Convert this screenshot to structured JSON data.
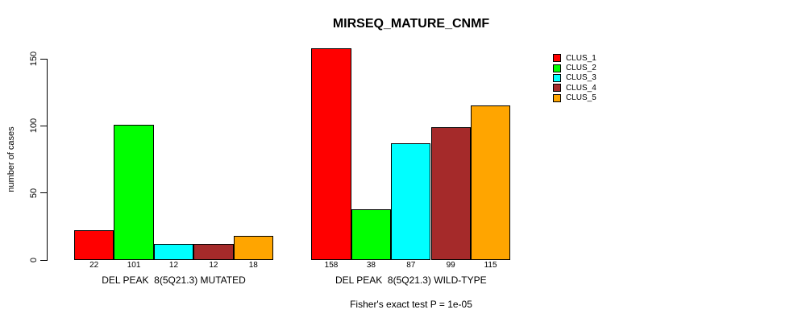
{
  "chart_data": {
    "type": "bar",
    "title": "MIRSEQ_MATURE_CNMF",
    "ylabel": "number of cases",
    "yticks": [
      0,
      50,
      100,
      150
    ],
    "ylim": [
      0,
      158
    ],
    "grid": false,
    "legend_position": "right",
    "bar_value_labels_shown": true,
    "groups": [
      {
        "label": "DEL PEAK  8(5Q21.3) MUTATED",
        "values": [
          22,
          101,
          12,
          12,
          18
        ]
      },
      {
        "label": "DEL PEAK  8(5Q21.3) WILD-TYPE",
        "values": [
          158,
          38,
          87,
          99,
          115
        ]
      }
    ],
    "series": [
      {
        "name": "CLUS_1",
        "color": "#FF0000"
      },
      {
        "name": "CLUS_2",
        "color": "#00FF00"
      },
      {
        "name": "CLUS_3",
        "color": "#00FFFF"
      },
      {
        "name": "CLUS_4",
        "color": "#A52A2A"
      },
      {
        "name": "CLUS_5",
        "color": "#FFA500"
      }
    ],
    "footnote": "Fisher's exact test P = 1e-05"
  }
}
